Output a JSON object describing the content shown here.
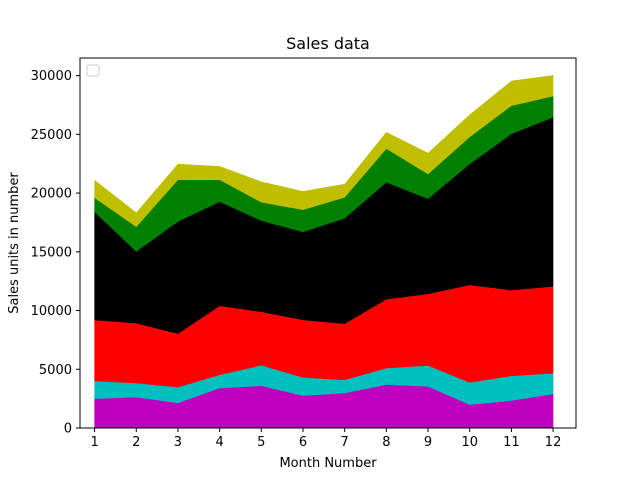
{
  "chart_data": {
    "type": "area",
    "stacked": true,
    "title": "Sales data",
    "xlabel": "Month Number",
    "ylabel": "Sales units in number",
    "x": [
      1,
      2,
      3,
      4,
      5,
      6,
      7,
      8,
      9,
      10,
      11,
      12
    ],
    "xlim": [
      0.65,
      12.55
    ],
    "ylim": [
      0,
      31500
    ],
    "yticks": [
      0,
      5000,
      10000,
      15000,
      20000,
      25000,
      30000
    ],
    "grid": false,
    "legend": {
      "visible": true,
      "placement": "top-left",
      "entries": []
    },
    "series": [
      {
        "color": "#bf00bf",
        "values": [
          2500,
          2630,
          2140,
          3400,
          3600,
          2760,
          2980,
          3700,
          3540,
          1990,
          2340,
          2900
        ]
      },
      {
        "color": "#00bfbf",
        "values": [
          1500,
          1200,
          1340,
          1130,
          1740,
          1555,
          1120,
          1400,
          1780,
          1890,
          2100,
          1760
        ]
      },
      {
        "color": "#ff0000",
        "values": [
          5200,
          5100,
          4550,
          5870,
          4560,
          4890,
          4780,
          5860,
          6100,
          8300,
          7300,
          7400
        ]
      },
      {
        "color": "#000000",
        "values": [
          9200,
          6100,
          9550,
          8870,
          7760,
          7490,
          8980,
          9960,
          8100,
          10300,
          13300,
          14400
        ]
      },
      {
        "color": "#008000",
        "values": [
          1200,
          2100,
          3550,
          1870,
          1560,
          1890,
          1780,
          2860,
          2100,
          2300,
          2400,
          1800
        ]
      },
      {
        "color": "#bfbf00",
        "values": [
          1500,
          1200,
          1340,
          1130,
          1740,
          1555,
          1120,
          1400,
          1780,
          1890,
          2100,
          1760
        ]
      }
    ]
  }
}
